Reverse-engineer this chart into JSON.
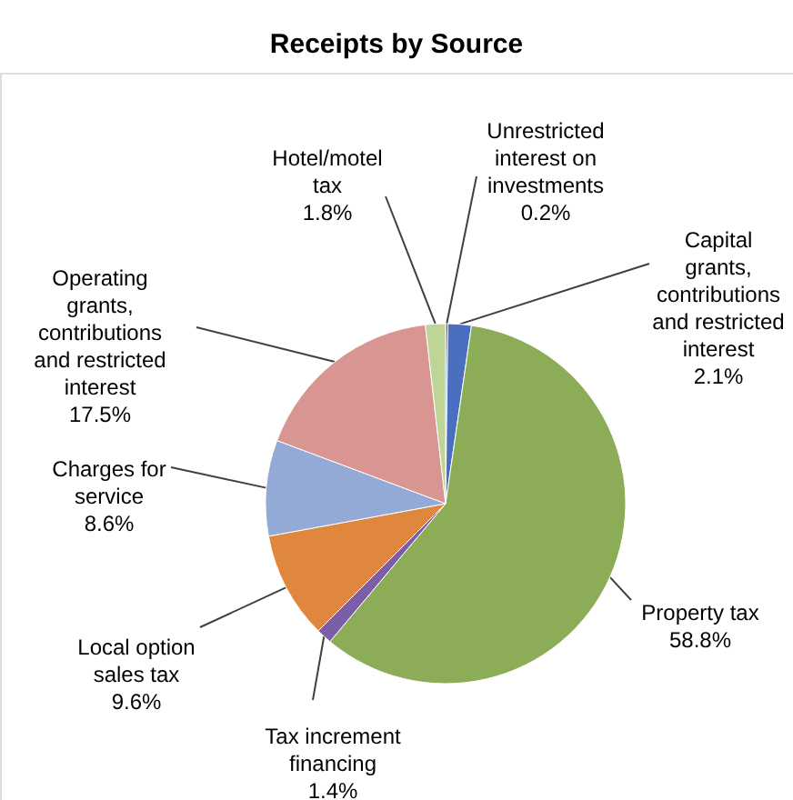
{
  "chart_data": {
    "type": "pie",
    "title": "Receipts by Source",
    "categories": [
      "Unrestricted interest on investments",
      "Capital grants, contributions and restricted interest",
      "Property tax",
      "Tax increment financing",
      "Local option sales tax",
      "Charges for service",
      "Operating grants, contributions and restricted interest",
      "Hotel/motel tax"
    ],
    "values": [
      0.2,
      2.1,
      58.8,
      1.4,
      9.6,
      8.6,
      17.5,
      1.8
    ],
    "value_labels": [
      "0.2%",
      "2.1%",
      "58.8%",
      "1.4%",
      "9.6%",
      "8.6%",
      "17.5%",
      "1.8%"
    ],
    "colors": [
      "#2f4d8f",
      "#4a6fbf",
      "#8cac58",
      "#7a5ea8",
      "#e0873e",
      "#93aad6",
      "#d99592",
      "#bfd497"
    ],
    "legend": false
  }
}
